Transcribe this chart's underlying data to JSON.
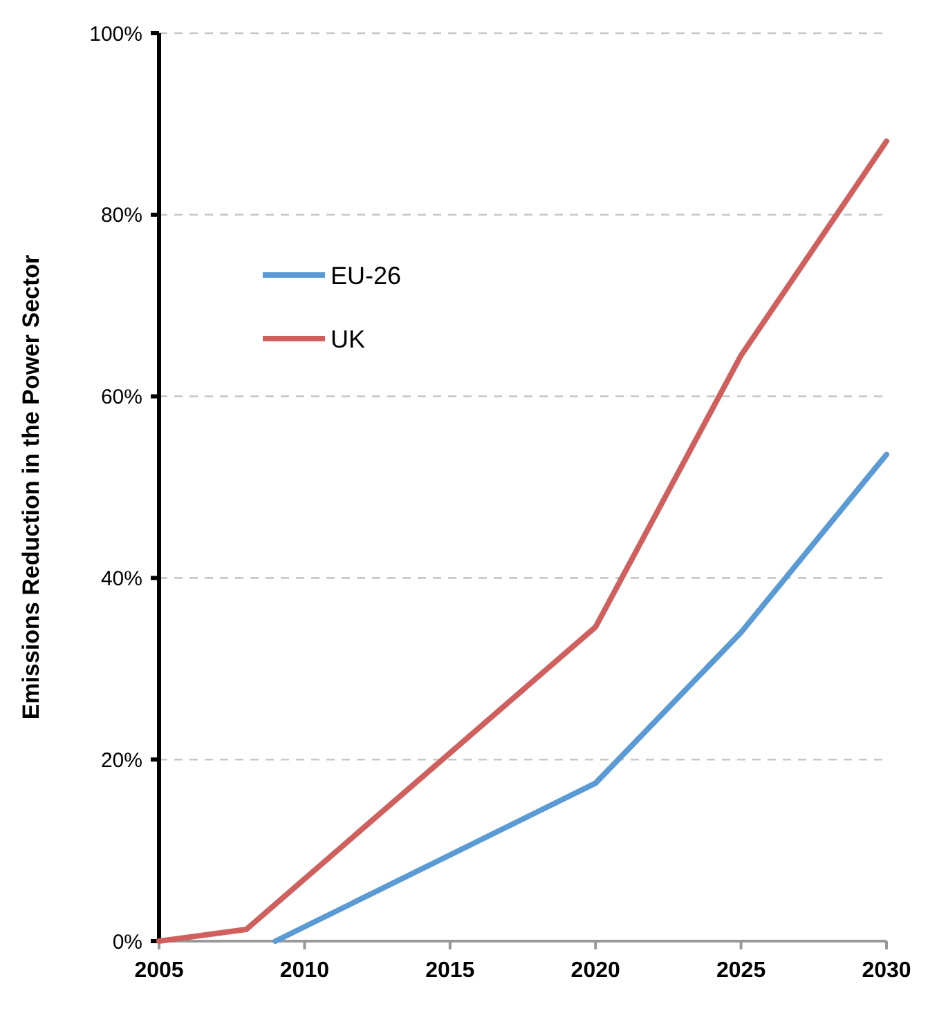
{
  "chart_data": {
    "type": "line",
    "ylabel": "Emissions Reduction in the Power Sector",
    "xlim": [
      2005,
      2030
    ],
    "xticks": [
      2005,
      2010,
      2015,
      2020,
      2025,
      2030
    ],
    "ylim": [
      0,
      100
    ],
    "yticks": [
      {
        "value": 0,
        "label": "0%"
      },
      {
        "value": 20,
        "label": "20%"
      },
      {
        "value": 40,
        "label": "40%"
      },
      {
        "value": 60,
        "label": "60%"
      },
      {
        "value": 80,
        "label": "80%"
      },
      {
        "value": 100,
        "label": "100%"
      }
    ],
    "grid": "y",
    "legend": "top left",
    "marker": "none",
    "line_style": "solid",
    "series": [
      {
        "name": "EU-26",
        "color": "#5b9bd5",
        "x": [
          2009,
          2020,
          2025,
          2030
        ],
        "values": [
          0,
          17.4,
          34,
          53.6
        ]
      },
      {
        "name": "UK",
        "color": "#d0605e",
        "x": [
          2005,
          2008,
          2020,
          2025,
          2030
        ],
        "values": [
          0,
          1.3,
          34.6,
          64.5,
          88.1
        ]
      }
    ]
  }
}
